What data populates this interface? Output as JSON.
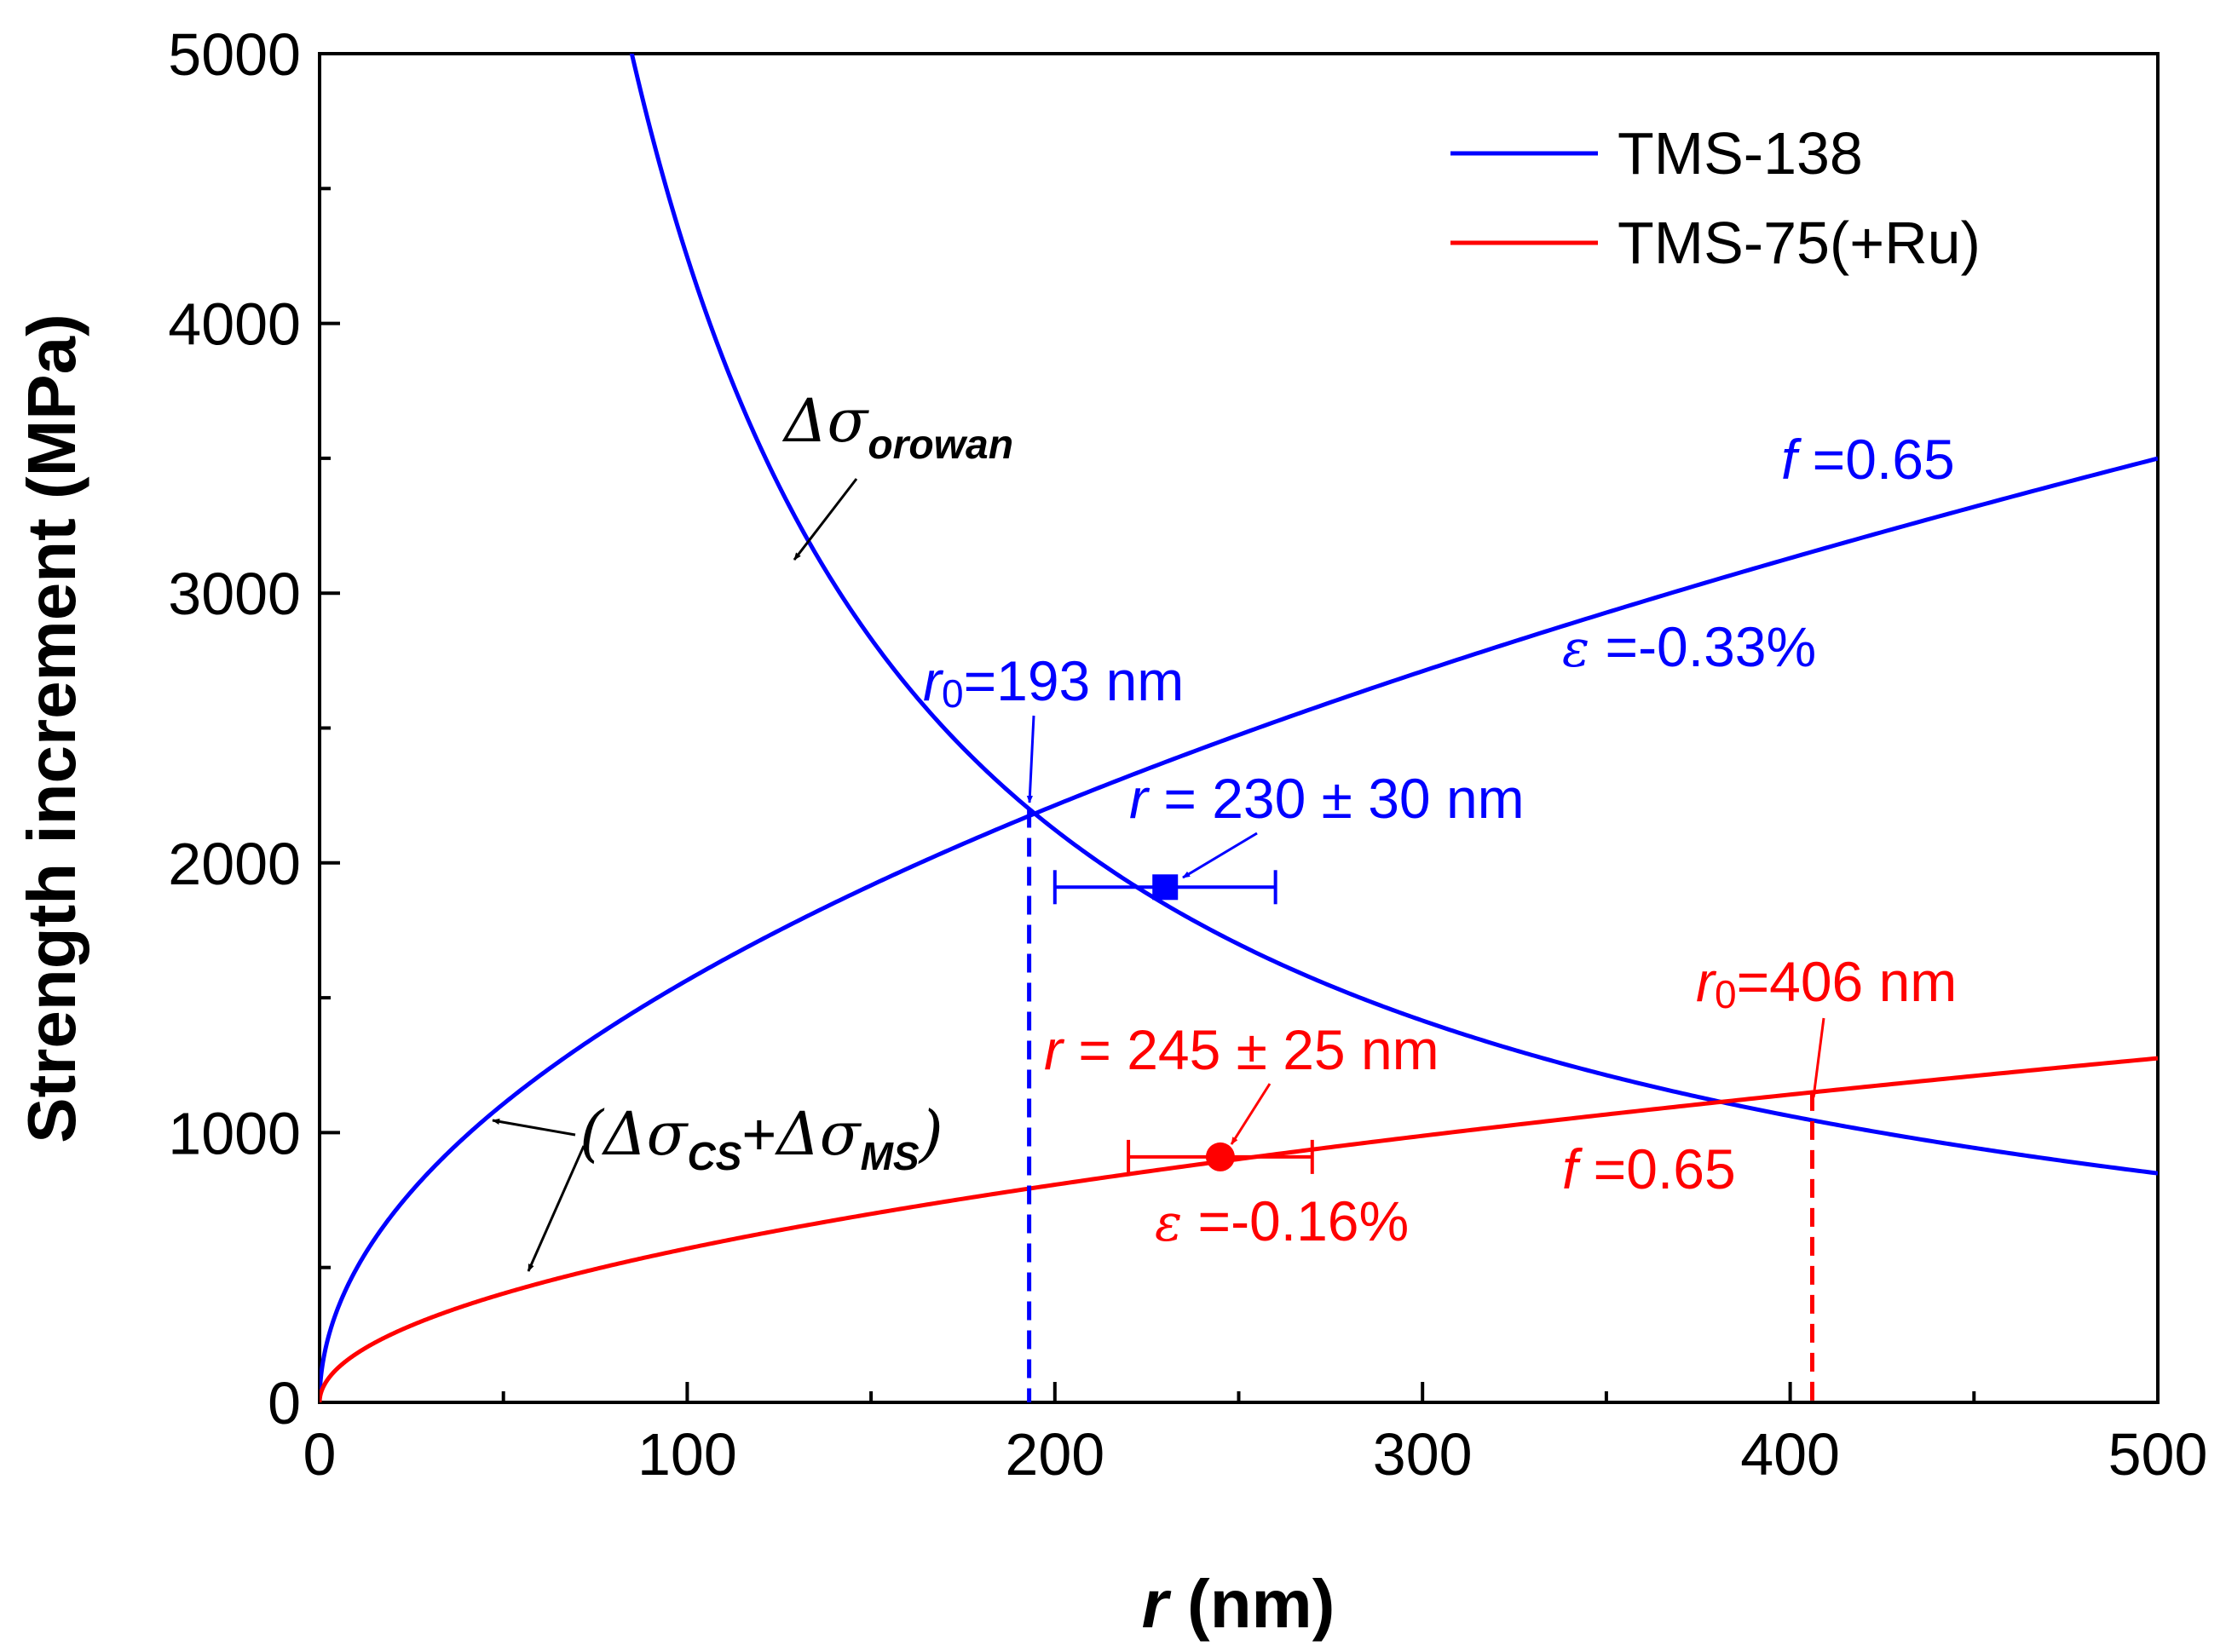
{
  "chart_data": {
    "type": "line",
    "xlabel": "r (nm)",
    "xlabel_var": "r",
    "xlabel_unit": "(nm)",
    "ylabel": "Strength increment (MPa)",
    "xlim": [
      0,
      500
    ],
    "ylim": [
      0,
      5000
    ],
    "xticks": [
      0,
      100,
      200,
      300,
      400,
      500
    ],
    "yticks": [
      0,
      1000,
      2000,
      3000,
      4000,
      5000
    ],
    "x_minor_step": 50,
    "y_minor_step": 500,
    "grid": false,
    "legend_position": "top-right",
    "colors": {
      "tms138": "#0000ff",
      "tms75": "#ff0000",
      "axis": "#000000"
    },
    "series": [
      {
        "name": "TMS-138",
        "color": "#0000ff",
        "curves": [
          {
            "id": "orowan",
            "formula": "k/r",
            "k": 424600,
            "x_min": 72,
            "x_max": 500
          },
          {
            "id": "coherency",
            "formula": "a*sqrt(r)",
            "a": 156.5,
            "x_min": 0,
            "x_max": 500
          }
        ],
        "intersection": {
          "x": 193,
          "y": 2200
        },
        "measured": {
          "x": 230,
          "y": 1910,
          "x_err": 30,
          "marker": "square"
        }
      },
      {
        "name": "TMS-75(+Ru)",
        "color": "#ff0000",
        "curves": [
          {
            "id": "coherency",
            "formula": "a*sqrt(r)",
            "a": 57.05,
            "x_min": 0,
            "x_max": 500
          }
        ],
        "intersection": {
          "x": 406,
          "y": 1150
        },
        "measured": {
          "x": 245,
          "y": 910,
          "x_err": 25,
          "marker": "circle"
        }
      }
    ],
    "annotations": {
      "orowan_label": {
        "prefix": "Δσ",
        "sub": "orowan"
      },
      "cs_ms_label": {
        "open": "(",
        "delta1": "Δσ",
        "sub1": "CS",
        "plus": "+",
        "delta2": "Δσ",
        "sub2": "MS",
        "close": ")"
      },
      "f_blue": {
        "var": "f",
        "text": " =0.65"
      },
      "eps_blue": {
        "var": "ε",
        "text": " =-0.33%"
      },
      "r0_blue": {
        "var": "r",
        "sub": "0",
        "text": "=193 nm"
      },
      "r_blue": {
        "var": "r",
        "text": " = 230 ± 30 nm"
      },
      "r0_red": {
        "var": "r",
        "sub": "0",
        "text": "=406 nm"
      },
      "r_red": {
        "var": "r",
        "text": " = 245 ± 25 nm"
      },
      "f_red": {
        "var": "f",
        "text": " =0.65"
      },
      "eps_red": {
        "var": "ε",
        "text": " =-0.16%"
      }
    }
  }
}
